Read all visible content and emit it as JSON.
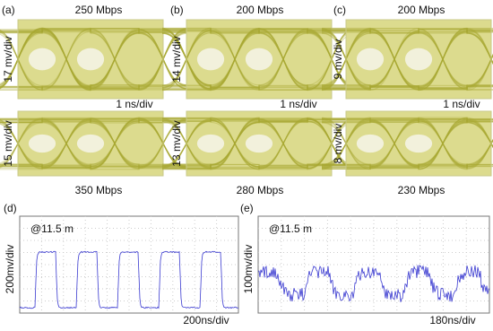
{
  "eye_panels": [
    {
      "label": "(a)",
      "top_rate": "250 Mbps",
      "top_scale": "17 mv/div",
      "time_scale": "1 ns/div",
      "bottom_scale": "15 mv/div",
      "bottom_rate": "350 Mbps"
    },
    {
      "label": "(b)",
      "top_rate": "200 Mbps",
      "top_scale": "14 mv/div",
      "time_scale": "1 ns/div",
      "bottom_scale": "13 mv/div",
      "bottom_rate": "280 Mbps"
    },
    {
      "label": "(c)",
      "top_rate": "200 Mbps",
      "top_scale": "9 mv/div",
      "time_scale": "1 ns/div",
      "bottom_scale": "8 mv/div",
      "bottom_rate": "230 Mbps"
    }
  ],
  "scope_panels": [
    {
      "label": "(d)",
      "distance": "@11.5 m",
      "v_scale": "200mv/div",
      "t_scale": "200ns/div"
    },
    {
      "label": "(e)",
      "distance": "@11.5 m",
      "v_scale": "100mv/div",
      "t_scale": "180ns/div"
    }
  ]
}
